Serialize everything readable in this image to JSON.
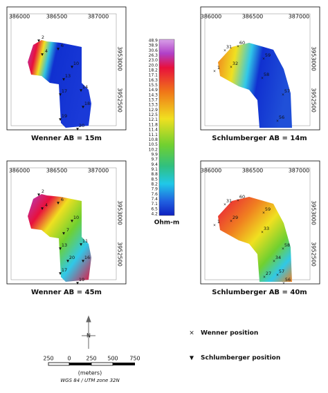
{
  "panels": [
    {
      "title": "Wenner AB = 15m",
      "x_ticks": [
        "386000",
        "386500",
        "387000"
      ],
      "y_ticks": [
        "3953000",
        "3952500"
      ],
      "point_labels": [
        "2",
        "4",
        "6",
        "10",
        "13",
        "14",
        "17",
        "18",
        "19",
        "20"
      ]
    },
    {
      "title": "Schlumberger AB = 14m",
      "x_ticks": [
        "386000",
        "386500",
        "387000"
      ],
      "y_ticks": [
        "3953000",
        "3952500"
      ],
      "point_labels": [
        "60",
        "31",
        "1",
        "59",
        "32",
        "58",
        "57",
        "56"
      ]
    },
    {
      "title": "Wenner AB = 45m",
      "x_ticks": [
        "386000",
        "386500",
        "387000"
      ],
      "y_ticks": [
        "3953000",
        "3952500"
      ],
      "point_labels": [
        "2",
        "4",
        "6",
        "10",
        "7",
        "11",
        "13",
        "16",
        "17",
        "19",
        "20"
      ]
    },
    {
      "title": "Schlumberger AB = 40m",
      "x_ticks": [
        "386000",
        "386500",
        "387000"
      ],
      "y_ticks": [
        "3953000",
        "3952500"
      ],
      "point_labels": [
        "60",
        "31",
        "1",
        "59",
        "29",
        "33",
        "58",
        "57",
        "34",
        "27",
        "56"
      ]
    }
  ],
  "colorbar": {
    "labels": [
      "48.9",
      "38.9",
      "30.6",
      "26.3",
      "23.0",
      "20.0",
      "18.2",
      "17.1",
      "16.3",
      "15.5",
      "14.9",
      "14.3",
      "13.7",
      "13.3",
      "12.9",
      "12.5",
      "12.1",
      "11.8",
      "11.4",
      "11.1",
      "10.8",
      "10.5",
      "10.2",
      "9.9",
      "9.7",
      "9.4",
      "9.1",
      "8.8",
      "8.5",
      "8.2",
      "7.9",
      "7.6",
      "7.4",
      "7.1",
      "6.5",
      "4.2"
    ],
    "unit": "Ohm-m"
  },
  "legend": {
    "wenner": "Wenner position",
    "schlumberger": "Schlumberger position"
  },
  "scale": {
    "labels": [
      "250",
      "0",
      "250",
      "500",
      "750"
    ],
    "unit": "(meters)",
    "crs": "WGS 84 / UTM zone 32N"
  },
  "north": "N"
}
